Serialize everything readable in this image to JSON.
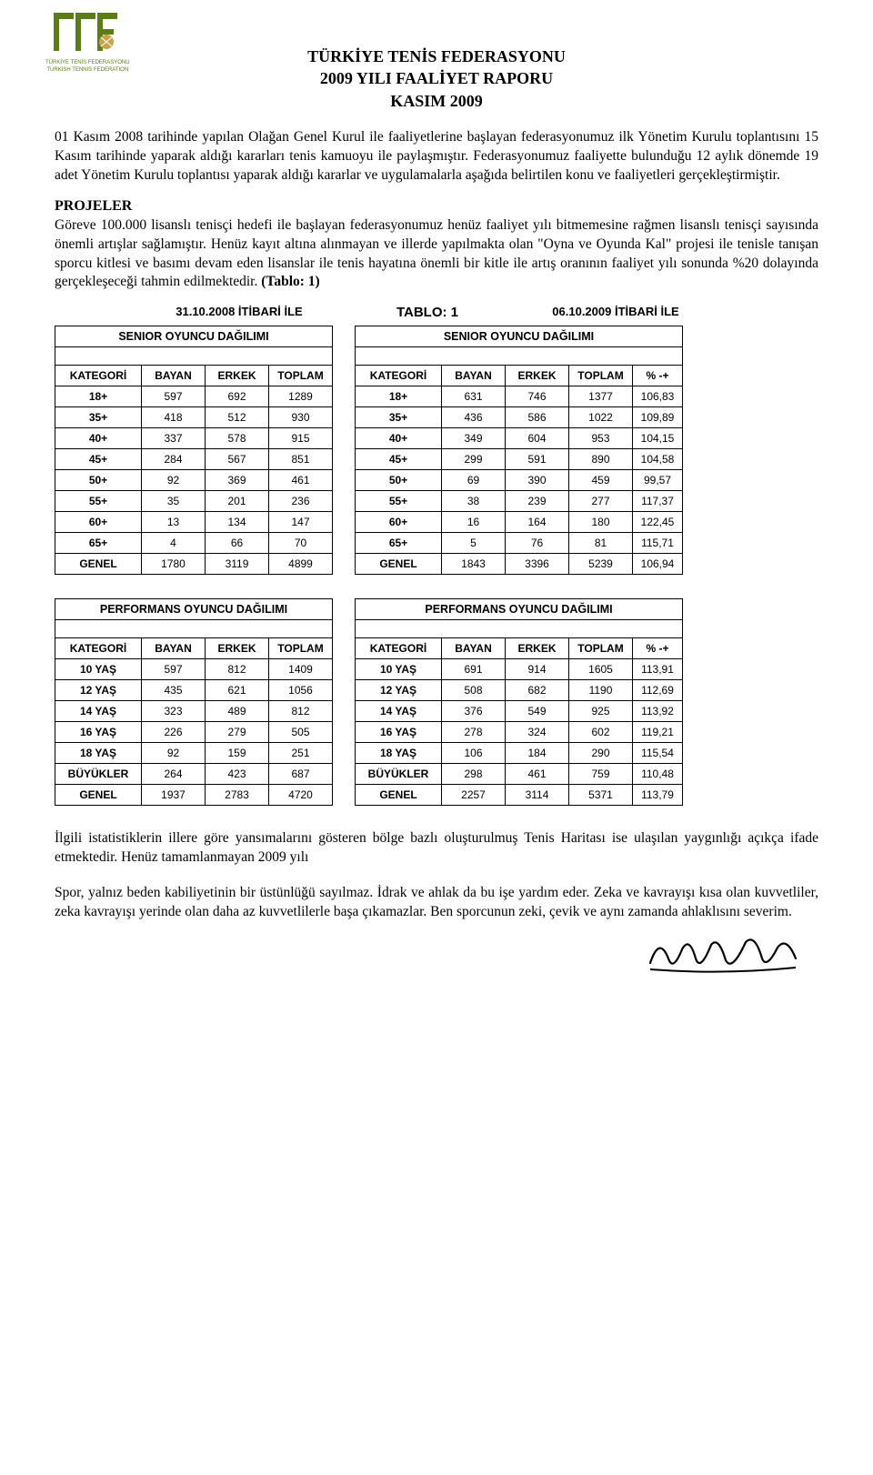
{
  "logo": {
    "caption1": "TÜRKİYE TENİS FEDERASYONU",
    "caption2": "TURKISH TENNIS FEDERATION",
    "green": "#5a7c1a",
    "gold": "#c9a34b"
  },
  "title": {
    "line1": "TÜRKİYE TENİS FEDERASYONU",
    "line2": "2009 YILI FAALİYET RAPORU",
    "line3": "KASIM 2009"
  },
  "para1": "01 Kasım 2008 tarihinde yapılan Olağan Genel Kurul ile faaliyetlerine başlayan federasyonumuz ilk Yönetim Kurulu toplantısını 15 Kasım tarihinde yaparak aldığı kararları tenis kamuoyu ile paylaşmıştır. Federasyonumuz faaliyette bulunduğu 12 aylık dönemde 19 adet Yönetim Kurulu toplantısı yaparak aldığı kararlar ve uygulamalarla aşağıda belirtilen konu ve faaliyetleri gerçekleştirmiştir.",
  "section_projeler": "PROJELER",
  "para2_a": "Göreve 100.000 lisanslı tenisçi hedefi ile başlayan federasyonumuz henüz faaliyet yılı bitmemesine rağmen lisanslı tenisçi sayısında önemli artışlar sağlamıştır. Henüz kayıt altına alınmayan ve illerde yapılmakta olan \"Oyna ve Oyunda Kal\" projesi ile tenisle tanışan sporcu kitlesi ve basımı devam eden lisanslar ile tenis hayatına önemli bir kitle ile artış oranının faaliyet yılı sonunda %20 dolayında gerçekleşeceği tahmin edilmektedir. ",
  "para2_bold": "(Tablo: 1)",
  "tabloLabel": "TABLO: 1",
  "dateLeft": "31.10.2008 İTİBARİ İLE",
  "dateRight": "06.10.2009 İTİBARİ İLE",
  "seniorHeader": "SENIOR OYUNCU DAĞILIMI",
  "perfHeader": "PERFORMANS OYUNCU DAĞILIMI",
  "cols": {
    "kategori": "KATEGORİ",
    "bayan": "BAYAN",
    "erkek": "ERKEK",
    "toplam": "TOPLAM",
    "pct": "% -+"
  },
  "seniorLeft": [
    {
      "k": "18+",
      "b": 597,
      "e": 692,
      "t": 1289
    },
    {
      "k": "35+",
      "b": 418,
      "e": 512,
      "t": 930
    },
    {
      "k": "40+",
      "b": 337,
      "e": 578,
      "t": 915
    },
    {
      "k": "45+",
      "b": 284,
      "e": 567,
      "t": 851
    },
    {
      "k": "50+",
      "b": 92,
      "e": 369,
      "t": 461
    },
    {
      "k": "55+",
      "b": 35,
      "e": 201,
      "t": 236
    },
    {
      "k": "60+",
      "b": 13,
      "e": 134,
      "t": 147
    },
    {
      "k": "65+",
      "b": 4,
      "e": 66,
      "t": 70
    },
    {
      "k": "GENEL",
      "b": 1780,
      "e": 3119,
      "t": 4899
    }
  ],
  "seniorRight": [
    {
      "k": "18+",
      "b": 631,
      "e": 746,
      "t": 1377,
      "p": "106,83"
    },
    {
      "k": "35+",
      "b": 436,
      "e": 586,
      "t": 1022,
      "p": "109,89"
    },
    {
      "k": "40+",
      "b": 349,
      "e": 604,
      "t": 953,
      "p": "104,15"
    },
    {
      "k": "45+",
      "b": 299,
      "e": 591,
      "t": 890,
      "p": "104,58"
    },
    {
      "k": "50+",
      "b": 69,
      "e": 390,
      "t": 459,
      "p": "99,57"
    },
    {
      "k": "55+",
      "b": 38,
      "e": 239,
      "t": 277,
      "p": "117,37"
    },
    {
      "k": "60+",
      "b": 16,
      "e": 164,
      "t": 180,
      "p": "122,45"
    },
    {
      "k": "65+",
      "b": 5,
      "e": 76,
      "t": 81,
      "p": "115,71"
    },
    {
      "k": "GENEL",
      "b": 1843,
      "e": 3396,
      "t": 5239,
      "p": "106,94"
    }
  ],
  "perfLeft": [
    {
      "k": "10 YAŞ",
      "b": 597,
      "e": 812,
      "t": 1409
    },
    {
      "k": "12 YAŞ",
      "b": 435,
      "e": 621,
      "t": 1056
    },
    {
      "k": "14 YAŞ",
      "b": 323,
      "e": 489,
      "t": 812
    },
    {
      "k": "16 YAŞ",
      "b": 226,
      "e": 279,
      "t": 505
    },
    {
      "k": "18 YAŞ",
      "b": 92,
      "e": 159,
      "t": 251
    },
    {
      "k": "BÜYÜKLER",
      "b": 264,
      "e": 423,
      "t": 687
    },
    {
      "k": "GENEL",
      "b": 1937,
      "e": 2783,
      "t": 4720
    }
  ],
  "perfRight": [
    {
      "k": "10 YAŞ",
      "b": 691,
      "e": 914,
      "t": 1605,
      "p": "113,91"
    },
    {
      "k": "12 YAŞ",
      "b": 508,
      "e": 682,
      "t": 1190,
      "p": "112,69"
    },
    {
      "k": "14 YAŞ",
      "b": 376,
      "e": 549,
      "t": 925,
      "p": "113,92"
    },
    {
      "k": "16 YAŞ",
      "b": 278,
      "e": 324,
      "t": 602,
      "p": "119,21"
    },
    {
      "k": "18 YAŞ",
      "b": 106,
      "e": 184,
      "t": 290,
      "p": "115,54"
    },
    {
      "k": "BÜYÜKLER",
      "b": 298,
      "e": 461,
      "t": 759,
      "p": "110,48"
    },
    {
      "k": "GENEL",
      "b": 2257,
      "e": 3114,
      "t": 5371,
      "p": "113,79"
    }
  ],
  "para3": "İlgili istatistiklerin illere göre yansımalarını gösteren bölge bazlı oluşturulmuş Tenis Haritası ise ulaşılan yaygınlığı açıkça ifade etmektedir. Henüz tamamlanmayan 2009 yılı",
  "footer_quote": "Spor, yalnız beden kabiliyetinin bir üstünlüğü sayılmaz. İdrak ve ahlak da bu işe yardım eder. Zeka ve kavrayışı kısa olan kuvvetliler, zeka kavrayışı yerinde olan daha az kuvvetlilerle başa çıkamazlar. Ben sporcunun zeki, çevik ve aynı zamanda ahlaklısını severim."
}
